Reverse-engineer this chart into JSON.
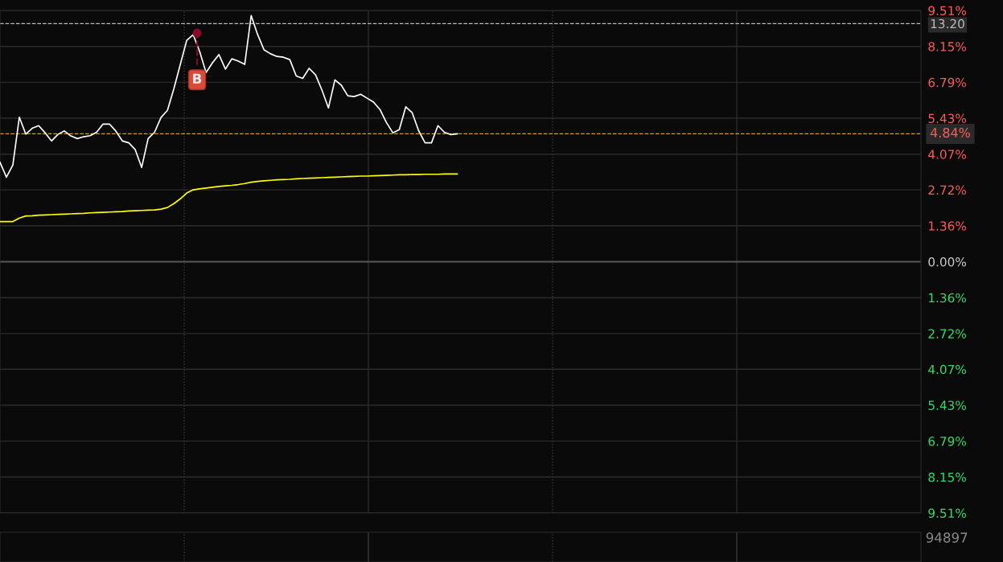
{
  "chart_data": {
    "type": "line",
    "categories": [
      null,
      null,
      null,
      null,
      null,
      null,
      null,
      null,
      null,
      null,
      null,
      null,
      null,
      null,
      null,
      null,
      null,
      null,
      null,
      null,
      null,
      null,
      null,
      null,
      null,
      null,
      null,
      null,
      null,
      null,
      null,
      null,
      null,
      null,
      null,
      null,
      null,
      null,
      null,
      null,
      null,
      null,
      null,
      null,
      null,
      null,
      null,
      null,
      null,
      null,
      null,
      null,
      null,
      null,
      null,
      null,
      null,
      null,
      null,
      null,
      null,
      null,
      null,
      null,
      null,
      null,
      null,
      null,
      null,
      null,
      null,
      null,
      null,
      null,
      null,
      null,
      null,
      null,
      null,
      null,
      null,
      null,
      null,
      null,
      null,
      null,
      null,
      null,
      null,
      null,
      null,
      null,
      null,
      null,
      null,
      null,
      null,
      null,
      null,
      null,
      null,
      null,
      null,
      null,
      null,
      null,
      null,
      null,
      null,
      null,
      null,
      null,
      null,
      null,
      null,
      null,
      null,
      null,
      null,
      null,
      null,
      null,
      null,
      null,
      null,
      null,
      null,
      null,
      null,
      null,
      null,
      null,
      null,
      null,
      null,
      null,
      null,
      null,
      null,
      null,
      null,
      null,
      null,
      null
    ],
    "series": [
      {
        "color": "#ffffff",
        "values": [
          3.76,
          3.2,
          3.66,
          5.47,
          4.83,
          5.05,
          5.15,
          4.88,
          4.57,
          4.82,
          4.95,
          4.76,
          4.66,
          4.73,
          4.77,
          4.9,
          5.21,
          5.21,
          4.94,
          4.57,
          4.5,
          4.24,
          3.57,
          4.66,
          4.9,
          5.46,
          5.73,
          6.55,
          7.47,
          8.38,
          8.59,
          7.96,
          7.16,
          7.53,
          7.84,
          7.29,
          7.68,
          7.59,
          7.47,
          9.32,
          8.6,
          8.02,
          7.87,
          7.77,
          7.74,
          7.65,
          7.03,
          6.94,
          7.32,
          7.07,
          6.49,
          5.82,
          6.88,
          6.68,
          6.28,
          6.25,
          6.34,
          6.19,
          6.04,
          5.76,
          5.27,
          4.88,
          5.0,
          5.86,
          5.64,
          4.96,
          4.5,
          4.5,
          5.15,
          4.9,
          4.81,
          4.84,
          null,
          null,
          null,
          null,
          null,
          null,
          null,
          null,
          null,
          null,
          null,
          null,
          null,
          null,
          null,
          null,
          null,
          null,
          null,
          null,
          null,
          null,
          null,
          null,
          null,
          null,
          null,
          null,
          null,
          null,
          null,
          null,
          null,
          null,
          null,
          null,
          null,
          null,
          null,
          null,
          null,
          null,
          null,
          null,
          null,
          null,
          null,
          null,
          null,
          null,
          null,
          null,
          null,
          null,
          null,
          null,
          null,
          null,
          null,
          null,
          null,
          null,
          null,
          null,
          null,
          null,
          null,
          null,
          null,
          null,
          null,
          null
        ]
      },
      {
        "color": "#ffff00",
        "values": [
          1.52,
          1.52,
          1.52,
          1.65,
          1.73,
          1.74,
          1.76,
          1.77,
          1.78,
          1.79,
          1.8,
          1.81,
          1.82,
          1.83,
          1.85,
          1.86,
          1.87,
          1.88,
          1.89,
          1.9,
          1.92,
          1.93,
          1.94,
          1.95,
          1.96,
          1.99,
          2.05,
          2.2,
          2.38,
          2.6,
          2.72,
          2.76,
          2.79,
          2.82,
          2.85,
          2.87,
          2.89,
          2.92,
          2.96,
          3.01,
          3.04,
          3.06,
          3.08,
          3.1,
          3.11,
          3.12,
          3.14,
          3.15,
          3.16,
          3.17,
          3.18,
          3.19,
          3.2,
          3.21,
          3.22,
          3.23,
          3.24,
          3.24,
          3.25,
          3.26,
          3.27,
          3.28,
          3.29,
          3.29,
          3.3,
          3.3,
          3.31,
          3.31,
          3.31,
          3.32,
          3.32,
          3.32,
          null,
          null,
          null,
          null,
          null,
          null,
          null,
          null,
          null,
          null,
          null,
          null,
          null,
          null,
          null,
          null,
          null,
          null,
          null,
          null,
          null,
          null,
          null,
          null,
          null,
          null,
          null,
          null,
          null,
          null,
          null,
          null,
          null,
          null,
          null,
          null,
          null,
          null,
          null,
          null,
          null,
          null,
          null,
          null,
          null,
          null,
          null,
          null,
          null,
          null,
          null,
          null,
          null,
          null,
          null,
          null,
          null,
          null,
          null,
          null,
          null,
          null,
          null,
          null,
          null,
          null,
          null,
          null,
          null,
          null,
          null,
          null
        ]
      }
    ],
    "ylim": [
      -9.51,
      9.51
    ],
    "yticks": [
      {
        "value": 9.51,
        "label": "9.51%"
      },
      {
        "value": 8.15,
        "label": "8.15%"
      },
      {
        "value": 6.79,
        "label": "6.79%"
      },
      {
        "value": 5.43,
        "label": "5.43%"
      },
      {
        "value": 4.07,
        "label": "4.07%"
      },
      {
        "value": 2.72,
        "label": "2.72%"
      },
      {
        "value": 1.36,
        "label": "1.36%"
      },
      {
        "value": 0,
        "label": "0.00%"
      },
      {
        "value": -1.36,
        "label": "1.36%"
      },
      {
        "value": -2.72,
        "label": "2.72%"
      },
      {
        "value": -4.07,
        "label": "4.07%"
      },
      {
        "value": -5.43,
        "label": "5.43%"
      },
      {
        "value": -6.79,
        "label": "6.79%"
      },
      {
        "value": -8.15,
        "label": "8.15%"
      },
      {
        "value": -9.51,
        "label": "9.51%"
      }
    ],
    "ref_lines": [
      {
        "axis": "y",
        "value": 9.01,
        "color": "#bbbbbb",
        "line_style": "dashed"
      },
      {
        "axis": "y",
        "value": 4.84,
        "label": "4.84%",
        "color": "#c8a030",
        "line_style": "dashed"
      }
    ],
    "annotations": [
      "B",
      "94897",
      "13.20"
    ],
    "grid": true,
    "tick_labels": "y",
    "line_style": "solid"
  }
}
